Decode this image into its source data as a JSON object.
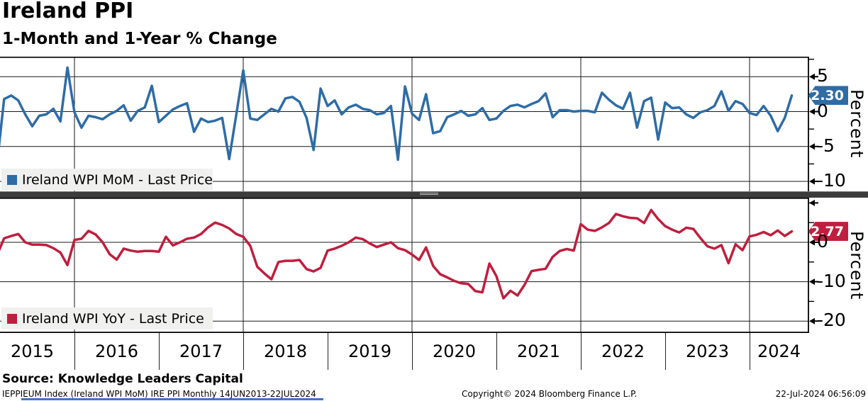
{
  "header": {
    "title": "Ireland PPI",
    "subtitle": "1-Month and 1-Year % Change"
  },
  "panels": {
    "top": {
      "legend": "Ireland WPI MoM - Last Price",
      "axis_label": "Percent",
      "last_price_label": "2.30",
      "last_price_value": 2.3
    },
    "bottom": {
      "legend": "Ireland WPI YoY - Last Price",
      "axis_label": "Percent",
      "last_price_label": "2.77",
      "last_price_value": 2.77
    }
  },
  "x_axis": {
    "years": [
      "2015",
      "2016",
      "2017",
      "2018",
      "2019",
      "2020",
      "2021",
      "2022",
      "2023",
      "2024"
    ]
  },
  "footer": {
    "source": "Source: Knowledge Leaders Capital",
    "ticker_line": "IEPPIEUM Index (Ireland WPI MoM) IRE PPI  Monthly 14JUN2013-22JUL2024",
    "copyright": "Copyright© 2024 Bloomberg Finance L.P.",
    "timestamp": "22-Jul-2024 06:56:09"
  },
  "colors": {
    "mom_line": "#2e6ca6",
    "yoy_line": "#bf1e3e",
    "mom_badge": "#2e6ca6",
    "yoy_badge": "#bf1e3e",
    "grid": "#1a1a1a",
    "frame": "#000000",
    "splitter": "#3c3c3c",
    "legend_bg": "#f0f0ef",
    "underline": "#4472c4"
  },
  "chart_data": [
    {
      "type": "line",
      "name": "Ireland WPI MoM - Last Price",
      "panel": "top",
      "freq": "monthly",
      "start": "2015-02",
      "end": "2024-07",
      "ylabel": "Percent",
      "ylim": [
        -11.5,
        7.9
      ],
      "yticks_major": [
        5,
        0,
        -5,
        -10
      ],
      "yticks_minor": [
        7.5,
        2.5,
        -2.5,
        -7.5
      ],
      "last_value": 2.3,
      "values": [
        -7.4,
        1.8,
        2.3,
        1.6,
        -0.4,
        -2.1,
        -0.6,
        -0.4,
        0.4,
        -1.4,
        6.3,
        -0.1,
        -2.3,
        -0.6,
        -0.8,
        -1.1,
        -0.4,
        0.1,
        0.9,
        -1.3,
        0.1,
        0.6,
        3.7,
        -1.5,
        -0.6,
        0.3,
        0.8,
        1.2,
        -2.9,
        -1.0,
        -1.5,
        -1.3,
        -0.9,
        -6.8,
        -0.5,
        5.9,
        -1.0,
        -1.2,
        -0.4,
        0.4,
        0.0,
        1.9,
        2.1,
        1.4,
        -0.9,
        -5.5,
        3.3,
        0.8,
        1.6,
        -0.4,
        0.6,
        1.0,
        0.4,
        0.2,
        -0.4,
        -0.2,
        0.8,
        -6.9,
        3.6,
        -0.3,
        -1.2,
        2.5,
        -3.1,
        -2.8,
        -0.8,
        -0.4,
        0.1,
        -0.6,
        -0.4,
        0.5,
        -1.2,
        -1.0,
        0.1,
        0.8,
        1.0,
        0.6,
        1.1,
        1.5,
        2.6,
        -0.8,
        0.2,
        0.2,
        0.0,
        0.1,
        0.1,
        -0.1,
        2.7,
        1.7,
        0.9,
        0.4,
        2.7,
        -2.3,
        1.5,
        2.0,
        -4.0,
        1.3,
        0.5,
        0.6,
        -0.4,
        -0.9,
        -0.1,
        0.2,
        0.8,
        2.9,
        0.1,
        1.5,
        1.1,
        -0.2,
        -0.5,
        0.8,
        -0.6,
        -2.8,
        -0.9,
        2.3
      ]
    },
    {
      "type": "line",
      "name": "Ireland WPI YoY - Last Price",
      "panel": "bottom",
      "freq": "monthly",
      "start": "2015-02",
      "end": "2024-07",
      "ylabel": "Percent",
      "ylim": [
        -23.2,
        11.3
      ],
      "yticks_major": [
        0,
        -10,
        -20
      ],
      "yticks_minor": [
        10,
        5,
        -5,
        -15
      ],
      "last_value": 2.77,
      "values": [
        -3.2,
        1.0,
        1.6,
        2.1,
        0.0,
        -0.6,
        -0.6,
        -0.7,
        -1.5,
        -2.6,
        -5.8,
        0.6,
        0.9,
        2.9,
        2.0,
        0.0,
        -3.0,
        -4.4,
        -1.6,
        -2.1,
        -2.4,
        -2.2,
        -2.2,
        -2.4,
        1.4,
        -0.8,
        0.0,
        0.9,
        1.2,
        2.1,
        3.8,
        5.0,
        4.4,
        3.5,
        2.1,
        1.4,
        -0.9,
        -6.2,
        -7.9,
        -9.4,
        -5.0,
        -4.7,
        -4.7,
        -4.5,
        -6.8,
        -7.4,
        -6.5,
        -2.1,
        -1.6,
        -0.9,
        0.0,
        1.2,
        0.8,
        -0.3,
        -1.2,
        -0.6,
        0.0,
        -1.5,
        -2.0,
        -3.1,
        -4.5,
        -1.3,
        -6.0,
        -8.1,
        -8.9,
        -9.8,
        -10.4,
        -10.6,
        -12.4,
        -12.7,
        -5.4,
        -8.6,
        -14.2,
        -12.3,
        -13.5,
        -10.8,
        -7.3,
        -7.0,
        -6.7,
        -3.7,
        -2.2,
        -1.7,
        -2.1,
        4.6,
        3.2,
        2.9,
        3.8,
        4.9,
        7.2,
        6.6,
        6.2,
        6.1,
        4.9,
        8.2,
        5.9,
        4.1,
        3.2,
        2.5,
        3.7,
        3.4,
        1.1,
        -1.0,
        -1.6,
        -0.7,
        -5.3,
        -0.5,
        -2.0,
        1.5,
        1.9,
        2.6,
        1.8,
        3.0,
        1.6,
        2.77
      ]
    }
  ]
}
